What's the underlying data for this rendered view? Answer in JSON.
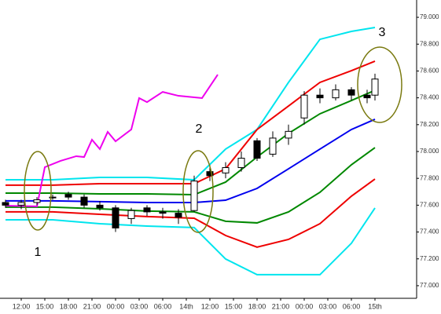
{
  "chart_data": {
    "type": "candlestick",
    "xlim": [
      -2.7,
      50.3
    ],
    "ylim": [
      76.906,
      79.129
    ],
    "xticks": [
      {
        "value": 0,
        "label": "12:00"
      },
      {
        "value": 3,
        "label": "15:00"
      },
      {
        "value": 6,
        "label": "18:00"
      },
      {
        "value": 9,
        "label": "21:00"
      },
      {
        "value": 12,
        "label": "00:00"
      },
      {
        "value": 15,
        "label": "03:00"
      },
      {
        "value": 18,
        "label": "06:00"
      },
      {
        "value": 21,
        "label": "14th"
      },
      {
        "value": 24,
        "label": "12:00"
      },
      {
        "value": 27,
        "label": "15:00"
      },
      {
        "value": 30,
        "label": "18:00"
      },
      {
        "value": 33,
        "label": "21:00"
      },
      {
        "value": 36,
        "label": "00:00"
      },
      {
        "value": 39,
        "label": "03:00"
      },
      {
        "value": 42,
        "label": "06:00"
      },
      {
        "value": 45,
        "label": "15th"
      }
    ],
    "yticks": [
      {
        "value": 77,
        "label": "77.000"
      },
      {
        "value": 77.2,
        "label": "77.200"
      },
      {
        "value": 77.4,
        "label": "77.400"
      },
      {
        "value": 77.6,
        "label": "77.600"
      },
      {
        "value": 77.8,
        "label": "77.800"
      },
      {
        "value": 78,
        "label": "78.000"
      },
      {
        "value": 78.2,
        "label": "78.200"
      },
      {
        "value": 78.4,
        "label": "78.400"
      },
      {
        "value": 78.6,
        "label": "78.600"
      },
      {
        "value": 78.8,
        "label": "78.800"
      },
      {
        "value": 79,
        "label": "79.000"
      }
    ],
    "candles": {
      "x": [
        -2,
        0,
        2,
        4,
        6,
        8,
        10,
        12,
        14,
        16,
        18,
        20,
        22,
        24,
        26,
        28,
        30,
        32,
        34,
        36,
        38,
        40,
        42,
        44,
        45
      ],
      "open": [
        77.62,
        77.6,
        77.62,
        77.66,
        77.68,
        77.66,
        77.6,
        77.58,
        77.5,
        77.58,
        77.55,
        77.54,
        77.56,
        77.85,
        77.84,
        77.88,
        78.08,
        77.98,
        78.1,
        78.25,
        78.42,
        78.4,
        78.46,
        78.42,
        78.42
      ],
      "high": [
        77.64,
        77.64,
        77.66,
        77.68,
        77.7,
        77.68,
        77.63,
        77.6,
        77.58,
        77.6,
        77.58,
        77.57,
        77.82,
        77.9,
        77.92,
        78.0,
        78.1,
        78.15,
        78.2,
        78.45,
        78.47,
        78.5,
        78.48,
        78.46,
        78.58
      ],
      "low": [
        77.58,
        77.57,
        77.6,
        77.64,
        77.64,
        77.58,
        77.56,
        77.4,
        77.46,
        77.52,
        77.5,
        77.46,
        77.55,
        77.78,
        77.8,
        77.85,
        77.93,
        77.96,
        78.05,
        78.2,
        78.36,
        78.38,
        78.38,
        78.36,
        78.38
      ],
      "close": [
        77.6,
        77.62,
        77.64,
        77.66,
        77.66,
        77.6,
        77.58,
        77.43,
        77.56,
        77.55,
        77.54,
        77.51,
        77.78,
        77.82,
        77.88,
        77.95,
        77.95,
        78.1,
        78.15,
        78.42,
        78.4,
        78.46,
        78.42,
        78.4,
        78.54
      ],
      "up_color": "#ffffff",
      "down_color": "#000000"
    },
    "series": [
      {
        "color": "#00e5ee",
        "x": [
          -2,
          4,
          10,
          16,
          22,
          26,
          30,
          34,
          38,
          42,
          45
        ],
        "values": [
          77.789,
          77.789,
          77.807,
          77.807,
          77.789,
          78.018,
          78.164,
          78.515,
          78.836,
          78.895,
          78.924
        ]
      },
      {
        "color": "#ee0000",
        "x": [
          -2,
          4,
          10,
          16,
          22,
          26,
          30,
          34,
          38,
          42,
          45
        ],
        "values": [
          77.749,
          77.749,
          77.76,
          77.76,
          77.76,
          77.871,
          78.164,
          78.339,
          78.515,
          78.602,
          78.673
        ]
      },
      {
        "color": "#008800",
        "x": [
          -2,
          4,
          10,
          16,
          22,
          26,
          30,
          34,
          38,
          42,
          45
        ],
        "values": [
          77.69,
          77.69,
          77.684,
          77.684,
          77.678,
          77.772,
          77.959,
          78.135,
          78.281,
          78.38,
          78.456
        ]
      },
      {
        "color": "#0000ee",
        "x": [
          -2,
          4,
          10,
          16,
          22,
          26,
          30,
          34,
          38,
          42,
          45
        ],
        "values": [
          77.632,
          77.632,
          77.626,
          77.62,
          77.62,
          77.637,
          77.725,
          77.871,
          78.018,
          78.164,
          78.24
        ]
      },
      {
        "color": "#008800",
        "x": [
          -2,
          4,
          10,
          16,
          22,
          26,
          30,
          34,
          38,
          42,
          45
        ],
        "values": [
          77.585,
          77.585,
          77.573,
          77.556,
          77.55,
          77.48,
          77.468,
          77.55,
          77.696,
          77.901,
          78.029
        ]
      },
      {
        "color": "#ee0000",
        "x": [
          -2,
          4,
          10,
          16,
          22,
          26,
          30,
          34,
          38,
          42,
          45
        ],
        "values": [
          77.55,
          77.55,
          77.532,
          77.515,
          77.503,
          77.374,
          77.287,
          77.345,
          77.462,
          77.667,
          77.795
        ]
      },
      {
        "color": "#00e5ee",
        "x": [
          -2,
          4,
          10,
          16,
          22,
          26,
          30,
          34,
          38,
          42,
          45
        ],
        "values": [
          77.491,
          77.491,
          77.462,
          77.444,
          77.433,
          77.199,
          77.082,
          77.082,
          77.082,
          77.316,
          77.579
        ]
      },
      {
        "color": "#ee00ee",
        "x": [
          -2,
          2,
          3,
          5,
          7,
          8,
          9,
          10,
          11,
          12,
          14,
          15,
          16,
          18,
          20,
          23,
          25
        ],
        "values": [
          77.596,
          77.591,
          77.883,
          77.93,
          77.965,
          77.959,
          78.088,
          78.018,
          78.146,
          78.076,
          78.164,
          78.398,
          78.368,
          78.444,
          78.415,
          78.398,
          78.573
        ]
      }
    ],
    "annotations": [
      "1",
      "2",
      "3"
    ]
  }
}
